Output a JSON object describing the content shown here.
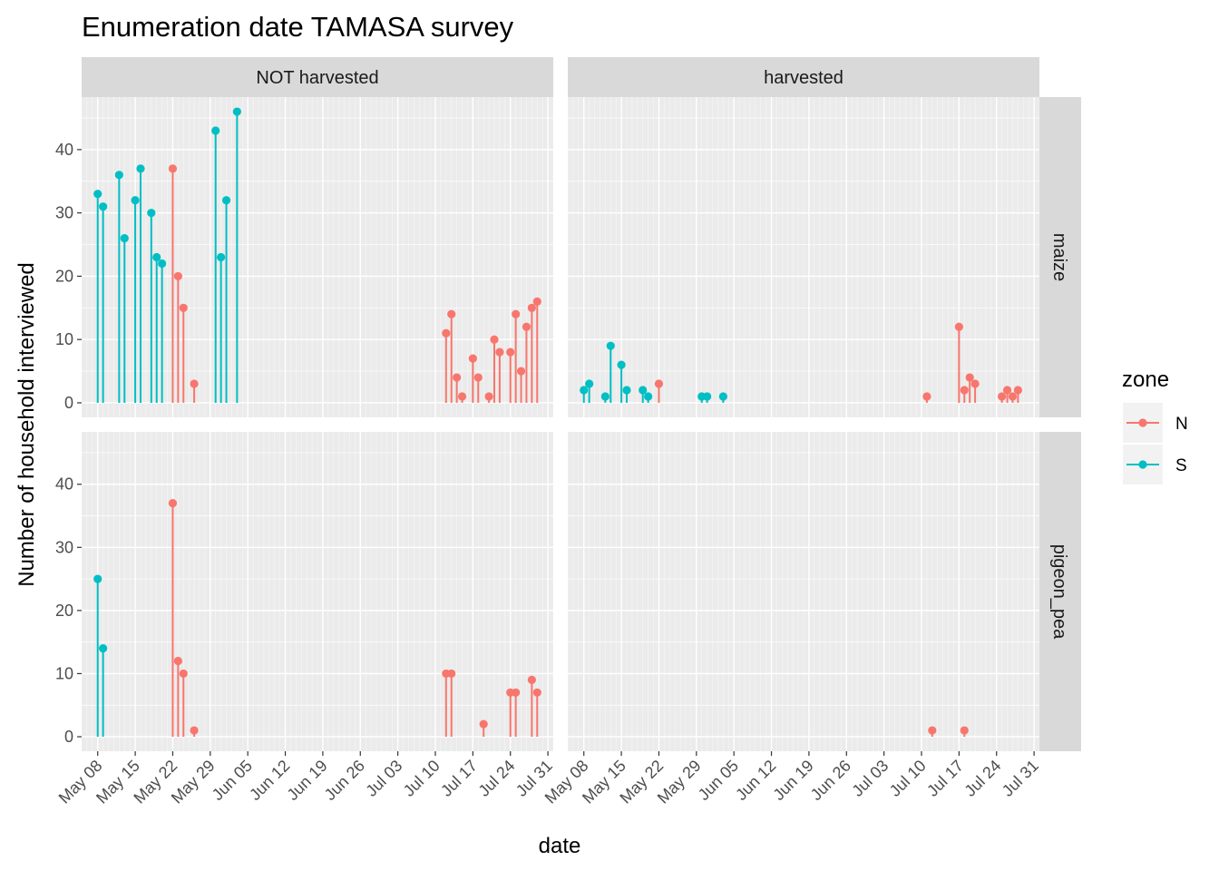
{
  "chart_data": {
    "type": "lollipop",
    "title": "Enumeration date TAMASA survey",
    "xlabel": "date",
    "ylabel": "Number of household interviewed",
    "x_ticks": [
      "May 08",
      "May 15",
      "May 22",
      "May 29",
      "Jun 05",
      "Jun 12",
      "Jun 19",
      "Jun 26",
      "Jul 03",
      "Jul 10",
      "Jul 17",
      "Jul 24",
      "Jul 31"
    ],
    "x_range": [
      "2015-05-05",
      "2015-08-01"
    ],
    "y_ticks": [
      0,
      10,
      20,
      30,
      40
    ],
    "ylim": [
      -2.3,
      48.3
    ],
    "column_facets": [
      "NOT harvested",
      "harvested"
    ],
    "row_facets": [
      "maize",
      "pigeon_pea"
    ],
    "legend": {
      "title": "zone",
      "position": "right",
      "entries": [
        "N",
        "S"
      ]
    },
    "colors": {
      "N": "#F8766D",
      "S": "#00BFC4"
    },
    "panels": [
      {
        "column": "NOT harvested",
        "row": "maize",
        "points": [
          {
            "date": "2015-05-08",
            "zone": "S",
            "n": 33
          },
          {
            "date": "2015-05-09",
            "zone": "S",
            "n": 31
          },
          {
            "date": "2015-05-12",
            "zone": "S",
            "n": 36
          },
          {
            "date": "2015-05-13",
            "zone": "S",
            "n": 26
          },
          {
            "date": "2015-05-15",
            "zone": "S",
            "n": 32
          },
          {
            "date": "2015-05-16",
            "zone": "S",
            "n": 37
          },
          {
            "date": "2015-05-18",
            "zone": "S",
            "n": 30
          },
          {
            "date": "2015-05-19",
            "zone": "S",
            "n": 23
          },
          {
            "date": "2015-05-20",
            "zone": "S",
            "n": 22
          },
          {
            "date": "2015-05-22",
            "zone": "N",
            "n": 37
          },
          {
            "date": "2015-05-23",
            "zone": "N",
            "n": 20
          },
          {
            "date": "2015-05-24",
            "zone": "N",
            "n": 15
          },
          {
            "date": "2015-05-26",
            "zone": "N",
            "n": 3
          },
          {
            "date": "2015-05-30",
            "zone": "S",
            "n": 43
          },
          {
            "date": "2015-05-31",
            "zone": "S",
            "n": 23
          },
          {
            "date": "2015-06-01",
            "zone": "S",
            "n": 32
          },
          {
            "date": "2015-06-03",
            "zone": "S",
            "n": 46
          },
          {
            "date": "2015-07-12",
            "zone": "N",
            "n": 11
          },
          {
            "date": "2015-07-13",
            "zone": "N",
            "n": 14
          },
          {
            "date": "2015-07-14",
            "zone": "N",
            "n": 4
          },
          {
            "date": "2015-07-15",
            "zone": "N",
            "n": 1
          },
          {
            "date": "2015-07-17",
            "zone": "N",
            "n": 7
          },
          {
            "date": "2015-07-18",
            "zone": "N",
            "n": 4
          },
          {
            "date": "2015-07-20",
            "zone": "N",
            "n": 1
          },
          {
            "date": "2015-07-21",
            "zone": "N",
            "n": 10
          },
          {
            "date": "2015-07-22",
            "zone": "N",
            "n": 8
          },
          {
            "date": "2015-07-24",
            "zone": "N",
            "n": 8
          },
          {
            "date": "2015-07-25",
            "zone": "N",
            "n": 14
          },
          {
            "date": "2015-07-26",
            "zone": "N",
            "n": 5
          },
          {
            "date": "2015-07-27",
            "zone": "N",
            "n": 12
          },
          {
            "date": "2015-07-28",
            "zone": "N",
            "n": 15
          },
          {
            "date": "2015-07-29",
            "zone": "N",
            "n": 16
          }
        ]
      },
      {
        "column": "harvested",
        "row": "maize",
        "points": [
          {
            "date": "2015-05-08",
            "zone": "S",
            "n": 2
          },
          {
            "date": "2015-05-09",
            "zone": "S",
            "n": 3
          },
          {
            "date": "2015-05-12",
            "zone": "S",
            "n": 1
          },
          {
            "date": "2015-05-13",
            "zone": "S",
            "n": 9
          },
          {
            "date": "2015-05-15",
            "zone": "S",
            "n": 6
          },
          {
            "date": "2015-05-16",
            "zone": "S",
            "n": 2
          },
          {
            "date": "2015-05-19",
            "zone": "S",
            "n": 2
          },
          {
            "date": "2015-05-20",
            "zone": "S",
            "n": 1
          },
          {
            "date": "2015-05-22",
            "zone": "N",
            "n": 3
          },
          {
            "date": "2015-05-30",
            "zone": "S",
            "n": 1
          },
          {
            "date": "2015-05-31",
            "zone": "S",
            "n": 1
          },
          {
            "date": "2015-06-03",
            "zone": "S",
            "n": 1
          },
          {
            "date": "2015-07-11",
            "zone": "N",
            "n": 1
          },
          {
            "date": "2015-07-17",
            "zone": "N",
            "n": 12
          },
          {
            "date": "2015-07-18",
            "zone": "N",
            "n": 2
          },
          {
            "date": "2015-07-19",
            "zone": "N",
            "n": 4
          },
          {
            "date": "2015-07-20",
            "zone": "N",
            "n": 3
          },
          {
            "date": "2015-07-25",
            "zone": "N",
            "n": 1
          },
          {
            "date": "2015-07-26",
            "zone": "N",
            "n": 2
          },
          {
            "date": "2015-07-27",
            "zone": "N",
            "n": 1
          },
          {
            "date": "2015-07-28",
            "zone": "N",
            "n": 2
          }
        ]
      },
      {
        "column": "NOT harvested",
        "row": "pigeon_pea",
        "points": [
          {
            "date": "2015-05-08",
            "zone": "S",
            "n": 25
          },
          {
            "date": "2015-05-09",
            "zone": "S",
            "n": 14
          },
          {
            "date": "2015-05-22",
            "zone": "N",
            "n": 37
          },
          {
            "date": "2015-05-23",
            "zone": "N",
            "n": 12
          },
          {
            "date": "2015-05-24",
            "zone": "N",
            "n": 10
          },
          {
            "date": "2015-05-26",
            "zone": "N",
            "n": 1
          },
          {
            "date": "2015-07-12",
            "zone": "N",
            "n": 10
          },
          {
            "date": "2015-07-13",
            "zone": "N",
            "n": 10
          },
          {
            "date": "2015-07-19",
            "zone": "N",
            "n": 2
          },
          {
            "date": "2015-07-24",
            "zone": "N",
            "n": 7
          },
          {
            "date": "2015-07-25",
            "zone": "N",
            "n": 7
          },
          {
            "date": "2015-07-28",
            "zone": "N",
            "n": 9
          },
          {
            "date": "2015-07-29",
            "zone": "N",
            "n": 7
          }
        ]
      },
      {
        "column": "harvested",
        "row": "pigeon_pea",
        "points": [
          {
            "date": "2015-07-12",
            "zone": "N",
            "n": 1
          },
          {
            "date": "2015-07-18",
            "zone": "N",
            "n": 1
          }
        ]
      }
    ]
  }
}
